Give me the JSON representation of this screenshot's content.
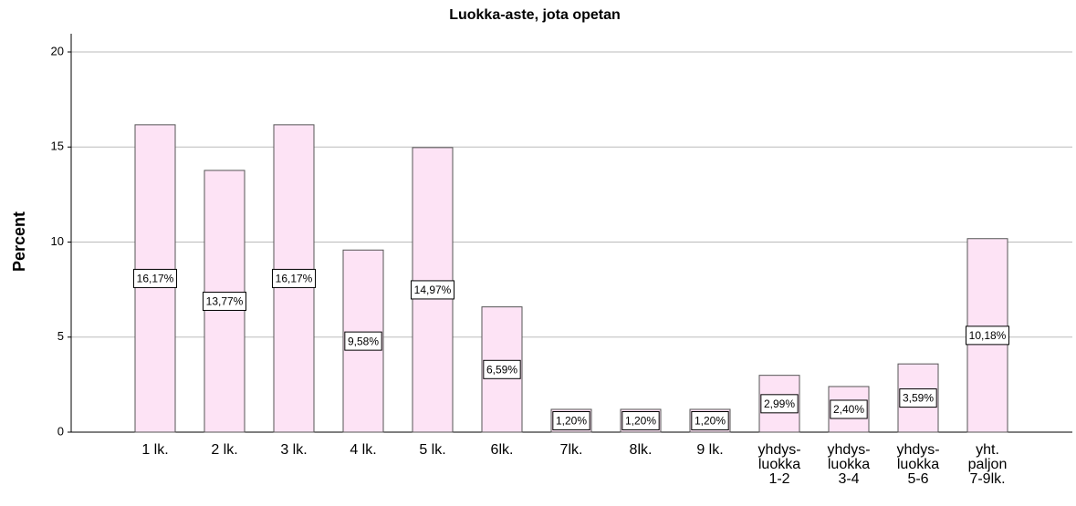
{
  "chart_data": {
    "type": "bar",
    "title": "Luokka-aste, jota opetan",
    "y_label": "Percent",
    "categories": [
      "1 lk.",
      "2 lk.",
      "3 lk.",
      "4 lk.",
      "5 lk.",
      "6lk.",
      "7lk.",
      "8lk.",
      "9 lk.",
      "yhdys-\nluokka\n1-2",
      "yhdys-\nluokka\n3-4",
      "yhdys-\nluokka\n5-6",
      "yht.\npaljon\n7-9lk."
    ],
    "values": [
      16.17,
      13.77,
      16.17,
      9.58,
      14.97,
      6.59,
      1.2,
      1.2,
      1.2,
      2.99,
      2.4,
      3.59,
      10.18
    ],
    "value_labels": [
      "16,17%",
      "13,77%",
      "16,17%",
      "9,58%",
      "14,97%",
      "6,59%",
      "1,20%",
      "1,20%",
      "1,20%",
      "2,99%",
      "2,40%",
      "3,59%",
      "10,18%"
    ],
    "color": "#fde3f5",
    "ylim": [
      0,
      20
    ],
    "yticks": [
      0,
      5,
      10,
      15,
      20
    ],
    "grid": true
  }
}
